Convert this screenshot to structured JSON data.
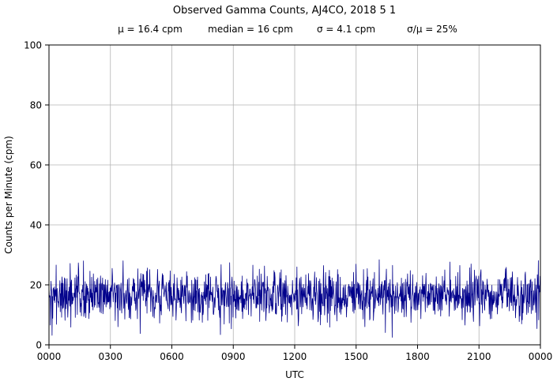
{
  "figure": {
    "title": "Observed Gamma Counts, AJ4CO, 2018 5 1",
    "stats": [
      "μ = 16.4 cpm",
      "median = 16 cpm",
      "σ = 4.1 cpm",
      "σ/μ = 25%"
    ]
  },
  "chart_data": {
    "type": "line",
    "title": "Observed Gamma Counts, AJ4CO, 2018 5 1",
    "stats_line": {
      "mean": "16.4 cpm",
      "median": "16 cpm",
      "sigma": "4.1 cpm",
      "sigma_over_mean": "25%"
    },
    "xlabel": "UTC",
    "ylabel": "Counts per Minute (cpm)",
    "x_tick_labels": [
      "0000",
      "0300",
      "0600",
      "0900",
      "1200",
      "1500",
      "1800",
      "2100",
      "0000"
    ],
    "y_tick_labels": [
      "0",
      "20",
      "40",
      "60",
      "80",
      "100"
    ],
    "y_ticks": [
      0,
      20,
      40,
      60,
      80,
      100
    ],
    "ylim": [
      0,
      100
    ],
    "x_range_minutes": [
      0,
      1440
    ],
    "grid": true,
    "legend": "none",
    "line_color": "#00008B",
    "grid_color": "#b4b4b4",
    "series": [
      {
        "name": "observed gamma counts",
        "points_per_day": 1440,
        "generator": {
          "distribution": "gaussian",
          "mean": 16.4,
          "sigma": 4.1,
          "clip_min": 2,
          "clip_max": 31.5,
          "seed": 20180501
        }
      }
    ]
  }
}
